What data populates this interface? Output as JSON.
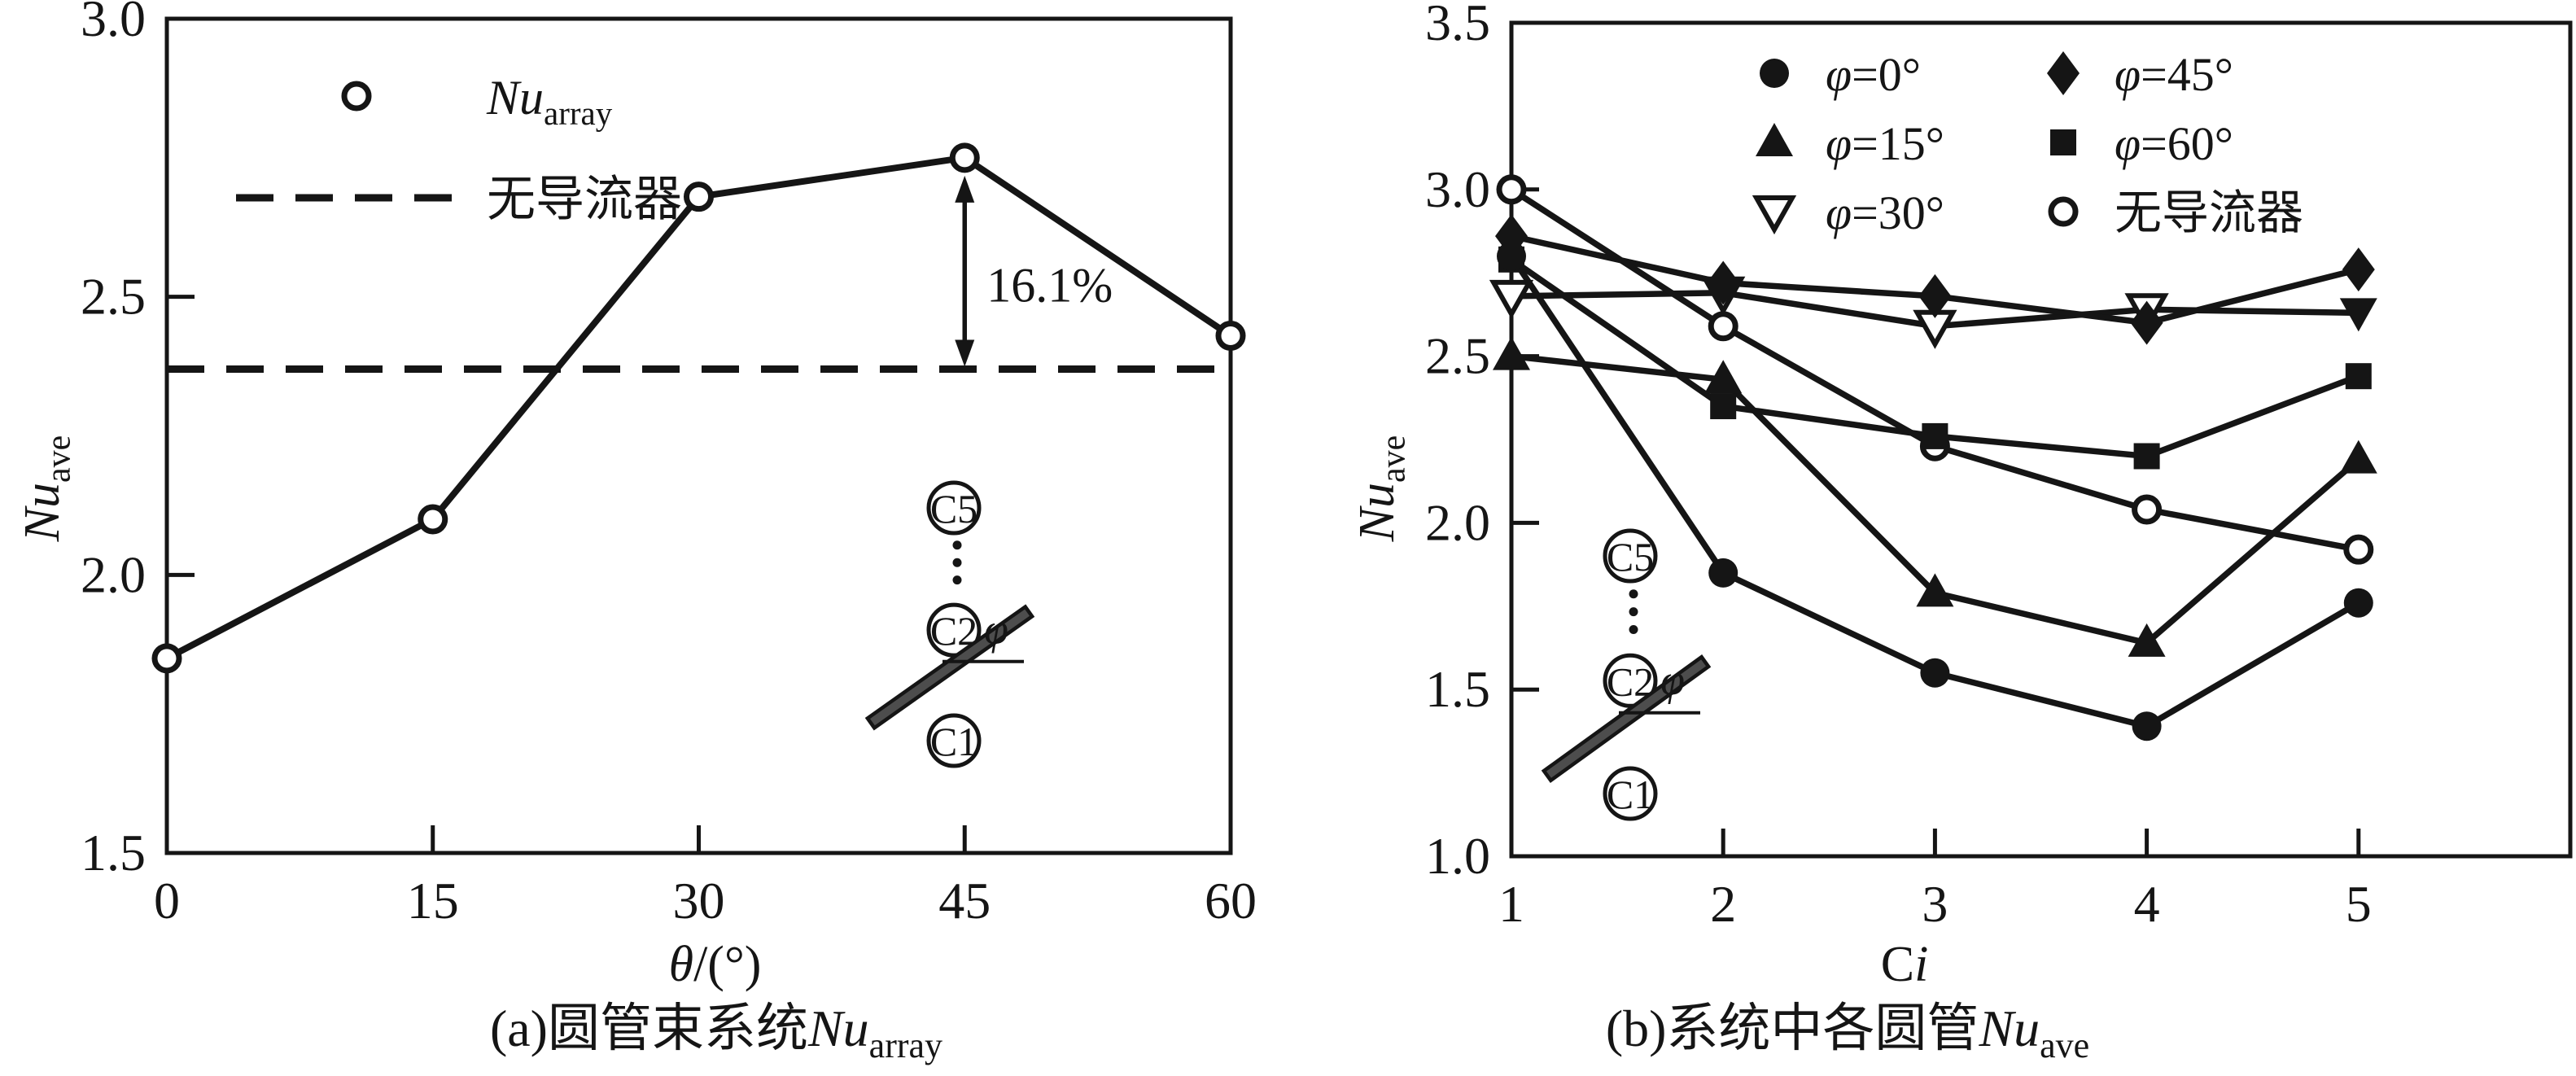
{
  "figure": {
    "background": "#ffffff",
    "ink": "#151515",
    "deflector_bar_color": "#4d4d4d"
  },
  "chart_data": [
    {
      "id": "a",
      "type": "line",
      "title": "(a)圆管束系统Nu_array",
      "xlabel": "θ/(°)",
      "ylabel": "Nu_ave",
      "x": [
        0,
        15,
        30,
        45,
        60
      ],
      "xtick_labels": [
        "0",
        "15",
        "30",
        "45",
        "60"
      ],
      "ytick_labels": [
        "1.5",
        "2.0",
        "2.5",
        "3.0"
      ],
      "xticks": [
        0,
        15,
        30,
        45,
        60
      ],
      "yticks": [
        1.5,
        2.0,
        2.5,
        3.0
      ],
      "xlim": [
        0,
        60
      ],
      "ylim": [
        1.5,
        3.0
      ],
      "grid": false,
      "legend_position": "upper-left-inside",
      "series": [
        {
          "name": "Nu_array",
          "marker": "circle-open",
          "values": [
            1.85,
            2.1,
            2.68,
            2.75,
            2.43
          ]
        }
      ],
      "reference_line": {
        "name": "无导流器",
        "y": 2.37,
        "style": "dashed"
      },
      "annotation": {
        "text": "16.1%",
        "x": 45,
        "arrow_from": 2.75,
        "arrow_to": 2.37
      },
      "inset_labels": [
        "C5",
        "C2",
        "C1",
        "φ"
      ]
    },
    {
      "id": "b",
      "type": "line",
      "title": "(b)系统中各圆管Nu_ave",
      "xlabel": "Ci",
      "ylabel": "Nu_ave",
      "x": [
        1,
        2,
        3,
        4,
        5
      ],
      "xtick_labels": [
        "1",
        "2",
        "3",
        "4",
        "5"
      ],
      "ytick_labels": [
        "1.0",
        "1.5",
        "2.0",
        "2.5",
        "3.0",
        "3.5"
      ],
      "xticks": [
        1,
        2,
        3,
        4,
        5
      ],
      "yticks": [
        1.0,
        1.5,
        2.0,
        2.5,
        3.0,
        3.5
      ],
      "xlim": [
        1,
        6
      ],
      "ylim": [
        1.0,
        3.5
      ],
      "grid": false,
      "legend_position": "upper-center-inside",
      "series": [
        {
          "name": "φ=0°",
          "marker": "circle-filled",
          "values": [
            2.8,
            1.85,
            1.55,
            1.39,
            1.76
          ]
        },
        {
          "name": "φ=15°",
          "marker": "triangle-up-filled",
          "values": [
            2.5,
            2.43,
            1.79,
            1.64,
            2.19
          ]
        },
        {
          "name": "φ=30°",
          "marker": "triangle-down-open",
          "marker_last": "triangle-down-filled",
          "values": [
            2.68,
            2.69,
            2.59,
            2.64,
            2.63
          ]
        },
        {
          "name": "φ=45°",
          "marker": "diamond-filled",
          "values": [
            2.86,
            2.72,
            2.68,
            2.6,
            2.76
          ]
        },
        {
          "name": "φ=60°",
          "marker": "square-filled",
          "values": [
            2.79,
            2.35,
            2.26,
            2.2,
            2.44
          ]
        },
        {
          "name": "无导流器",
          "marker": "circle-open",
          "values": [
            3.0,
            2.59,
            2.23,
            2.04,
            1.92
          ]
        }
      ],
      "inset_labels": [
        "C5",
        "C2",
        "C1",
        "φ"
      ]
    }
  ],
  "text": {
    "caption_a": [
      {
        "t": "(a)圆管束系统"
      },
      {
        "t": "Nu",
        "i": 1
      },
      {
        "t": "array",
        "sub": 1
      }
    ],
    "caption_b": [
      {
        "t": "(b)系统中各圆管"
      },
      {
        "t": "Nu",
        "i": 1
      },
      {
        "t": "ave",
        "sub": 1
      }
    ],
    "xlabel_a": [
      {
        "t": "θ",
        "i": 1
      },
      {
        "t": "/(°)"
      }
    ],
    "xlabel_b": [
      {
        "t": "C"
      },
      {
        "t": "i",
        "i": 1
      }
    ],
    "ylabel": [
      {
        "t": "Nu",
        "i": 1
      },
      {
        "t": "ave",
        "sub": 1
      }
    ],
    "legend_a": [
      {
        "marker": "circle-open",
        "parts": [
          {
            "t": "Nu",
            "i": 1
          },
          {
            "t": "array",
            "sub": 1
          }
        ]
      },
      {
        "marker": "dashed-line",
        "parts": [
          {
            "t": "无导流器"
          }
        ]
      }
    ],
    "legend_b": [
      {
        "marker": "circle-filled",
        "parts": [
          {
            "t": "φ",
            "i": 1
          },
          {
            "t": "=0°"
          }
        ]
      },
      {
        "marker": "diamond-filled",
        "parts": [
          {
            "t": "φ",
            "i": 1
          },
          {
            "t": "=45°"
          }
        ]
      },
      {
        "marker": "triangle-up-filled",
        "parts": [
          {
            "t": "φ",
            "i": 1
          },
          {
            "t": "=15°"
          }
        ]
      },
      {
        "marker": "square-filled",
        "parts": [
          {
            "t": "φ",
            "i": 1
          },
          {
            "t": "=60°"
          }
        ]
      },
      {
        "marker": "triangle-down-open",
        "parts": [
          {
            "t": "φ",
            "i": 1
          },
          {
            "t": "=30°"
          }
        ]
      },
      {
        "marker": "circle-open",
        "parts": [
          {
            "t": "无导流器"
          }
        ]
      }
    ],
    "inset": {
      "top_tube": "C5",
      "mid_tube": "C2",
      "bottom_tube": "C1",
      "angle": "φ"
    }
  }
}
